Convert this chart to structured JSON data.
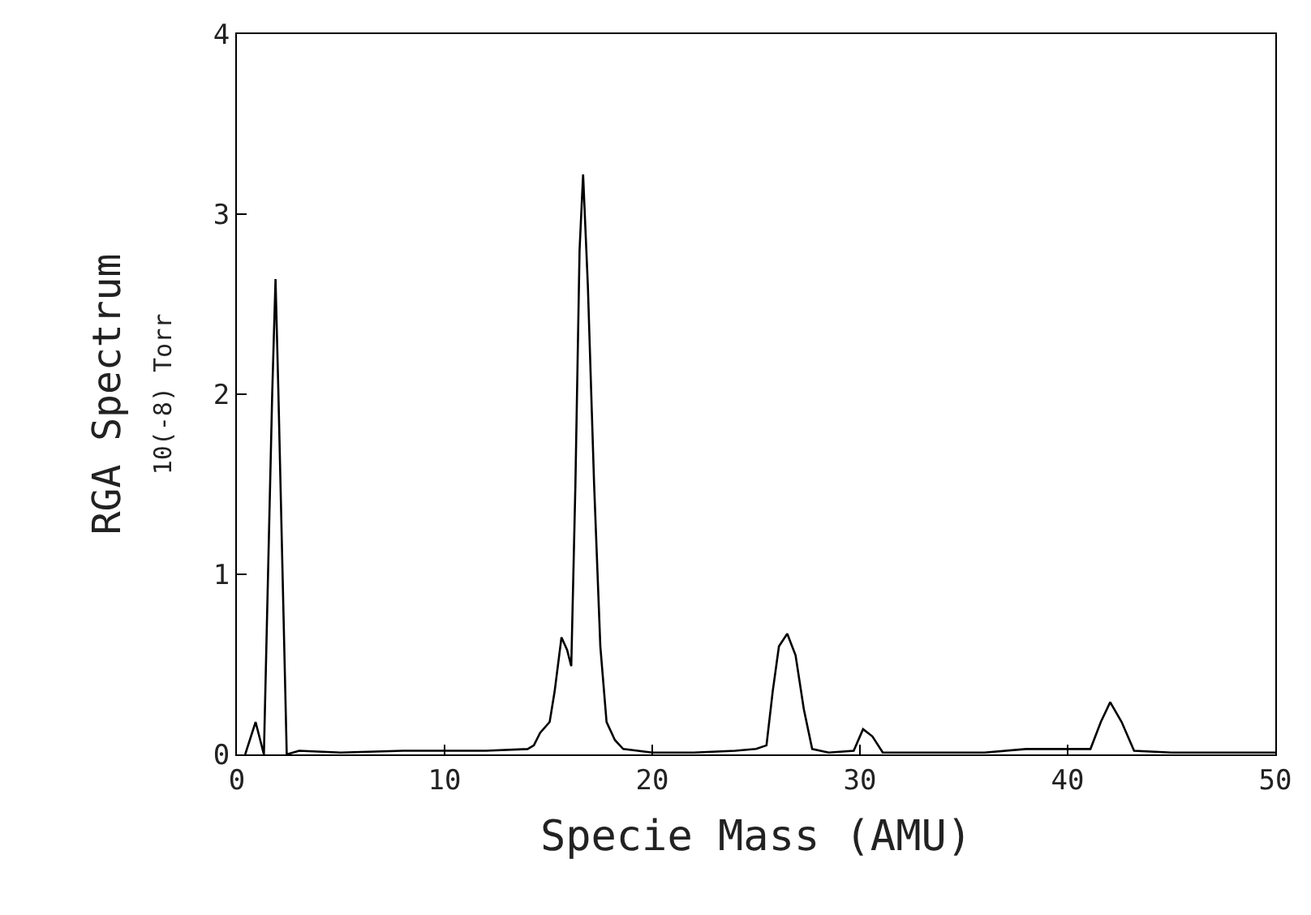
{
  "chart_data": {
    "type": "line",
    "xlabel": "Specie Mass (AMU)",
    "ylabel": "RGA Spectrum\n10(-8) Torr",
    "xlim": [
      0,
      50
    ],
    "xticks": [
      0,
      10,
      20,
      30,
      40,
      50
    ],
    "ylim": [
      0,
      4
    ],
    "yticks": [
      0,
      1,
      2,
      3,
      4
    ],
    "marker": "none",
    "line_style": "solid",
    "series": [
      {
        "color": "#000000",
        "x": [
          0.4,
          0.9,
          1.3,
          1.5,
          1.7,
          1.86,
          2.0,
          2.2,
          2.4,
          3,
          5,
          8,
          10,
          12,
          14,
          14.3,
          14.6,
          15.06,
          15.3,
          15.63,
          15.9,
          16.1,
          16.3,
          16.5,
          16.67,
          16.9,
          17.2,
          17.5,
          17.8,
          18.2,
          18.6,
          20,
          22,
          24,
          25,
          25.5,
          25.8,
          26.1,
          26.5,
          26.9,
          27.3,
          27.7,
          28.5,
          29.7,
          30.15,
          30.6,
          31.1,
          33,
          36,
          38,
          39,
          40,
          41.1,
          41.6,
          42.05,
          42.6,
          43.2,
          45,
          48,
          50
        ],
        "values": [
          0.0,
          0.18,
          0.0,
          1.0,
          2.0,
          2.64,
          2.0,
          1.0,
          0.0,
          0.02,
          0.01,
          0.02,
          0.02,
          0.02,
          0.03,
          0.05,
          0.12,
          0.18,
          0.35,
          0.65,
          0.58,
          0.49,
          1.5,
          2.8,
          3.22,
          2.6,
          1.5,
          0.6,
          0.18,
          0.08,
          0.03,
          0.01,
          0.01,
          0.02,
          0.03,
          0.05,
          0.35,
          0.6,
          0.67,
          0.55,
          0.25,
          0.03,
          0.01,
          0.02,
          0.14,
          0.1,
          0.01,
          0.01,
          0.01,
          0.03,
          0.03,
          0.03,
          0.03,
          0.18,
          0.29,
          0.18,
          0.02,
          0.01,
          0.01,
          0.01
        ]
      }
    ]
  }
}
